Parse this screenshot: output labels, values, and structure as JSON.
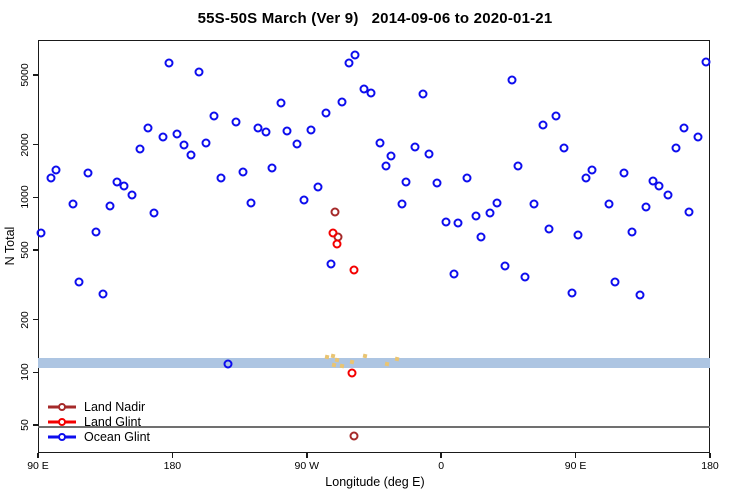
{
  "title": "55S-50S March (Ver 9)   2014-09-06 to 2020-01-21",
  "legend": {
    "items": [
      {
        "label": "Land Nadir",
        "color": "#A52A2A"
      },
      {
        "label": "Land Glint",
        "color": "#F40000"
      },
      {
        "label": "Ocean Glint",
        "color": "#0D0DEE"
      }
    ]
  },
  "chart_data": {
    "type": "scatter",
    "title": "55S-50S March (Ver 9)   2014-09-06 to 2020-01-21",
    "xlabel": "Longitude (deg E)",
    "ylabel": "N Total",
    "x_axis": {
      "note": "degrees eastward along axis, wrapping 90E -> 180 -> 90W -> 0 -> 90E -> 180",
      "range_deg": [
        90,
        540
      ],
      "ticks": [
        {
          "deg": 90,
          "label": "90 E"
        },
        {
          "deg": 180,
          "label": "180"
        },
        {
          "deg": 270,
          "label": "90 W"
        },
        {
          "deg": 360,
          "label": "0"
        },
        {
          "deg": 450,
          "label": "90 E"
        },
        {
          "deg": 540,
          "label": "180"
        }
      ]
    },
    "y_axis": {
      "scale": "log10",
      "range": [
        35,
        8100
      ],
      "ticks": [
        50,
        100,
        200,
        500,
        1000,
        2000,
        5000
      ]
    },
    "reference_band": {
      "n_low": 106,
      "n_high": 121,
      "color": "#adc5e2"
    },
    "reference_line": {
      "n": 50,
      "color": "#707070"
    },
    "series": [
      {
        "name": "Land Nadir",
        "color": "#A52A2A",
        "marker": "open-circle",
        "points": [
          [
            289,
            827
          ],
          [
            291,
            590
          ],
          [
            301.5,
            43
          ]
        ]
      },
      {
        "name": "Land Glint",
        "color": "#F40000",
        "marker": "open-circle",
        "points": [
          [
            287.5,
            623
          ],
          [
            290,
            538
          ],
          [
            301.5,
            385
          ],
          [
            300,
            99
          ]
        ]
      },
      {
        "name": "Ocean Glint",
        "color": "#0D0DEE",
        "marker": "open-circle",
        "points": [
          [
            92,
            625
          ],
          [
            98.5,
            1290
          ],
          [
            102,
            1430
          ],
          [
            113.5,
            916
          ],
          [
            117.5,
            329
          ],
          [
            123.5,
            1380
          ],
          [
            129,
            635
          ],
          [
            133.5,
            279
          ],
          [
            138.5,
            896
          ],
          [
            143,
            1230
          ],
          [
            147.5,
            1160
          ],
          [
            153,
            1030
          ],
          [
            158.5,
            1890
          ],
          [
            163.5,
            2480
          ],
          [
            168,
            817
          ],
          [
            173.5,
            2220
          ],
          [
            178,
            5880
          ],
          [
            183,
            2290
          ],
          [
            187.5,
            1980
          ],
          [
            192.5,
            1750
          ],
          [
            197.5,
            5220
          ],
          [
            202.5,
            2040
          ],
          [
            208,
            2920
          ],
          [
            212.5,
            1290
          ],
          [
            217,
            112
          ],
          [
            222.5,
            2680
          ],
          [
            227.5,
            1390
          ],
          [
            232.5,
            925
          ],
          [
            237.5,
            2480
          ],
          [
            242.5,
            2370
          ],
          [
            247,
            1480
          ],
          [
            253,
            3480
          ],
          [
            257,
            2390
          ],
          [
            263.5,
            2010
          ],
          [
            268,
            966
          ],
          [
            272.5,
            2430
          ],
          [
            277.5,
            1150
          ],
          [
            283,
            3020
          ],
          [
            286.5,
            416
          ],
          [
            293.5,
            3520
          ],
          [
            298,
            5880
          ],
          [
            302,
            6500
          ],
          [
            308,
            4140
          ],
          [
            313,
            3930
          ],
          [
            319,
            2050
          ],
          [
            323,
            1510
          ],
          [
            326.5,
            1730
          ],
          [
            333.5,
            912
          ],
          [
            336.5,
            1230
          ],
          [
            342.5,
            1950
          ],
          [
            347.5,
            3880
          ],
          [
            352,
            1760
          ],
          [
            357.5,
            1200
          ],
          [
            363,
            726
          ],
          [
            368.5,
            363
          ],
          [
            371.5,
            716
          ],
          [
            377,
            1290
          ],
          [
            383.5,
            782
          ],
          [
            386.5,
            595
          ],
          [
            393,
            817
          ],
          [
            397.5,
            925
          ],
          [
            402.5,
            406
          ],
          [
            407.5,
            4680
          ],
          [
            411.5,
            1500
          ],
          [
            416,
            352
          ],
          [
            422,
            912
          ],
          [
            428.5,
            2600
          ],
          [
            432.5,
            659
          ],
          [
            437,
            2930
          ],
          [
            442,
            1920
          ],
          [
            447.5,
            283
          ],
          [
            451.5,
            610
          ],
          [
            457,
            1290
          ],
          [
            461,
            1430
          ],
          [
            472.5,
            916
          ],
          [
            476.5,
            330
          ],
          [
            482.5,
            1370
          ],
          [
            487.5,
            635
          ],
          [
            493,
            277
          ],
          [
            497,
            883
          ],
          [
            501.5,
            1240
          ],
          [
            506,
            1160
          ],
          [
            512,
            1030
          ],
          [
            517.5,
            1910
          ],
          [
            522.5,
            2500
          ],
          [
            526,
            820
          ],
          [
            532,
            2220
          ],
          [
            537.5,
            5900
          ]
        ]
      },
      {
        "name": "unlabeled-yellow-marks",
        "color": "#E9C472",
        "marker": "small-square",
        "points": [
          [
            283.5,
            122
          ],
          [
            287.5,
            124
          ],
          [
            290,
            118
          ],
          [
            288,
            110
          ],
          [
            293.5,
            109
          ],
          [
            300,
            114
          ],
          [
            309,
            124
          ],
          [
            323.5,
            111
          ],
          [
            330.5,
            119
          ]
        ]
      }
    ]
  }
}
